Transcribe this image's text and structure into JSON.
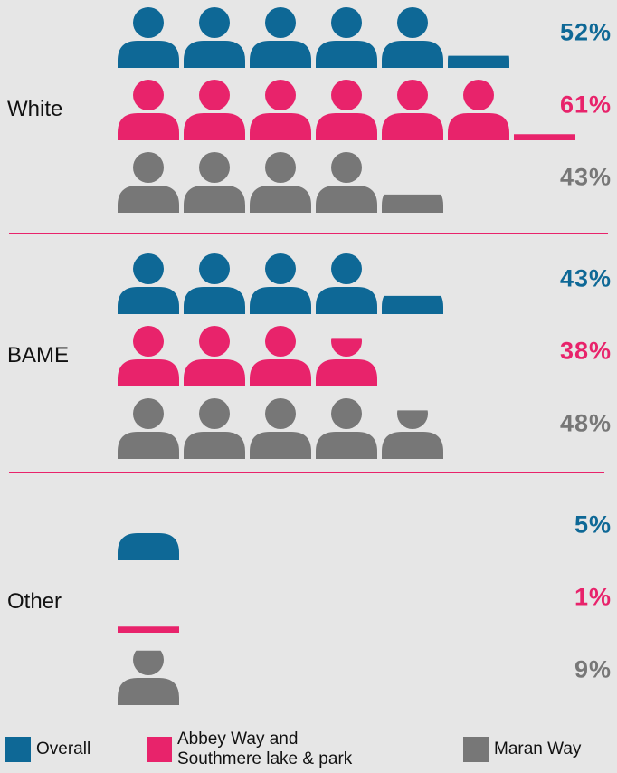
{
  "chart_data": {
    "type": "pictograph",
    "categories": [
      "White",
      "BAME",
      "Other"
    ],
    "series": [
      {
        "name": "Overall",
        "color": "#0e6896",
        "values": [
          52,
          43,
          5
        ],
        "value_labels": [
          "52%",
          "43%",
          "5%"
        ]
      },
      {
        "name": "Abbey Way and Southmere lake & park",
        "color": "#e8236b",
        "values": [
          61,
          38,
          1
        ],
        "value_labels": [
          "61%",
          "38%",
          "1%"
        ]
      },
      {
        "name": "Maran Way",
        "color": "#777777",
        "values": [
          43,
          48,
          9
        ],
        "value_labels": [
          "43%",
          "48%",
          "9%"
        ]
      }
    ]
  }
}
